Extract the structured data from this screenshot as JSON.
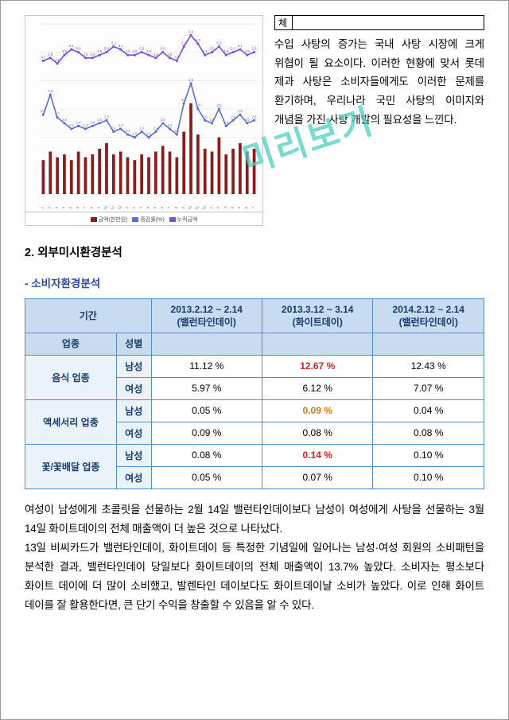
{
  "watermark": "미리보기",
  "topTable": {
    "cell": "체"
  },
  "topParagraph": "수입 사탕의 증가는 국내 사탕 시장에 크게 위협이 될 요소이다. 이러한 현황에 맞서 롯데 제과 사탕은 소비자들에게도 이러한 문제를 환기하며, 우리나라 국민 사탕의 이미지와 개념을 가진 사탕 개발의 필요성을 느낀다.",
  "chart": {
    "purpleLine": [
      4.7,
      4.8,
      4.6,
      4.9,
      5.1,
      5.0,
      4.8,
      4.8,
      4.9,
      5.0,
      5.2,
      5.1,
      4.9,
      4.9,
      5.0,
      4.9,
      4.8,
      5.0,
      4.8,
      4.7,
      5.2,
      5.6,
      5.3,
      4.9,
      5.0,
      5.2,
      4.9,
      5.0,
      5.1,
      4.9,
      5.0
    ],
    "blueLine": [
      2.8,
      3.5,
      2.7,
      2.5,
      2.3,
      2.4,
      2.3,
      2.4,
      2.5,
      2.6,
      2.2,
      2.3,
      2.1,
      2.0,
      2.2,
      2.0,
      2.2,
      2.5,
      2.3,
      2.1,
      3.2,
      3.9,
      3.0,
      2.6,
      2.5,
      3.0,
      2.4,
      2.6,
      2.8,
      2.5,
      2.6
    ],
    "bars": [
      1.2,
      1.5,
      1.3,
      1.4,
      1.2,
      1.5,
      1.3,
      1.4,
      1.6,
      1.8,
      1.4,
      1.5,
      1.3,
      1.2,
      1.4,
      1.3,
      1.5,
      1.7,
      1.5,
      1.3,
      2.2,
      3.2,
      2.1,
      1.6,
      1.5,
      2.0,
      1.4,
      1.6,
      1.8,
      1.5,
      1.6
    ],
    "yMax": 6,
    "colors": {
      "bar": "#8c1b1b",
      "line1": "#5a6fd1",
      "line2": "#7c4fd1"
    },
    "legend": [
      "금액(천만원)",
      "증감률(%)",
      "누적금액"
    ]
  },
  "sectionHeading": "2. 외부미시환경분석",
  "subHeading": "- 소비자환경분석",
  "table": {
    "headers": {
      "period": "기간",
      "category": "업종",
      "gender": "성별",
      "col1": {
        "range": "2013.2.12 ~ 2.14",
        "label": "(밸런타인데이)"
      },
      "col2": {
        "range": "2013.3.12 ~ 3.14",
        "label": "(화이트데이)"
      },
      "col3": {
        "range": "2014.2.12 ~ 2.14",
        "label": "(밸런타인데이)"
      }
    },
    "rows": [
      {
        "cat": "음식 업종",
        "g": "남성",
        "v1": "11.12 %",
        "v2": "12.67 %",
        "v3": "12.43 %",
        "hl2": "red"
      },
      {
        "cat": "",
        "g": "여성",
        "v1": "5.97 %",
        "v2": "6.12 %",
        "v3": "7.07 %"
      },
      {
        "cat": "액세서리 업종",
        "g": "남성",
        "v1": "0.05 %",
        "v2": "0.09 %",
        "v3": "0.04 %",
        "hl2": "orange"
      },
      {
        "cat": "",
        "g": "여성",
        "v1": "0.09 %",
        "v2": "0.08 %",
        "v3": "0.08 %"
      },
      {
        "cat": "꽃/꽃배달 업종",
        "g": "남성",
        "v1": "0.08 %",
        "v2": "0.14 %",
        "v3": "0.10 %",
        "hl2": "red"
      },
      {
        "cat": "",
        "g": "여성",
        "v1": "0.05 %",
        "v2": "0.07 %",
        "v3": "0.10 %"
      }
    ]
  },
  "bodyParagraph": "여성이 남성에게 초콜릿을 선물하는 2월 14일 밸런타인데이보다 남성이 여성에게 사탕을 선물하는 3월 14일 화이트데이의 전체 매출액이 더 높은 것으로 나타났다.\n13일 비씨카드가 밸런타인데이, 화이트데이 등 특정한 기념일에 일어나는 남성·여성 회원의 소비패턴을 분석한 결과, 밸런타인데이 당일보다 화이트데이의 전체 매출액이 13.7% 높았다. 소비자는 평소보다 화이트 데이에 더 많이 소비했고, 발렌타인 데이보다도 화이트데이날 소비가 높았다. 이로 인해 화이트 데이를 잘 활용한다면, 큰 단기 수익을 창출할 수 있음을 알 수 있다."
}
